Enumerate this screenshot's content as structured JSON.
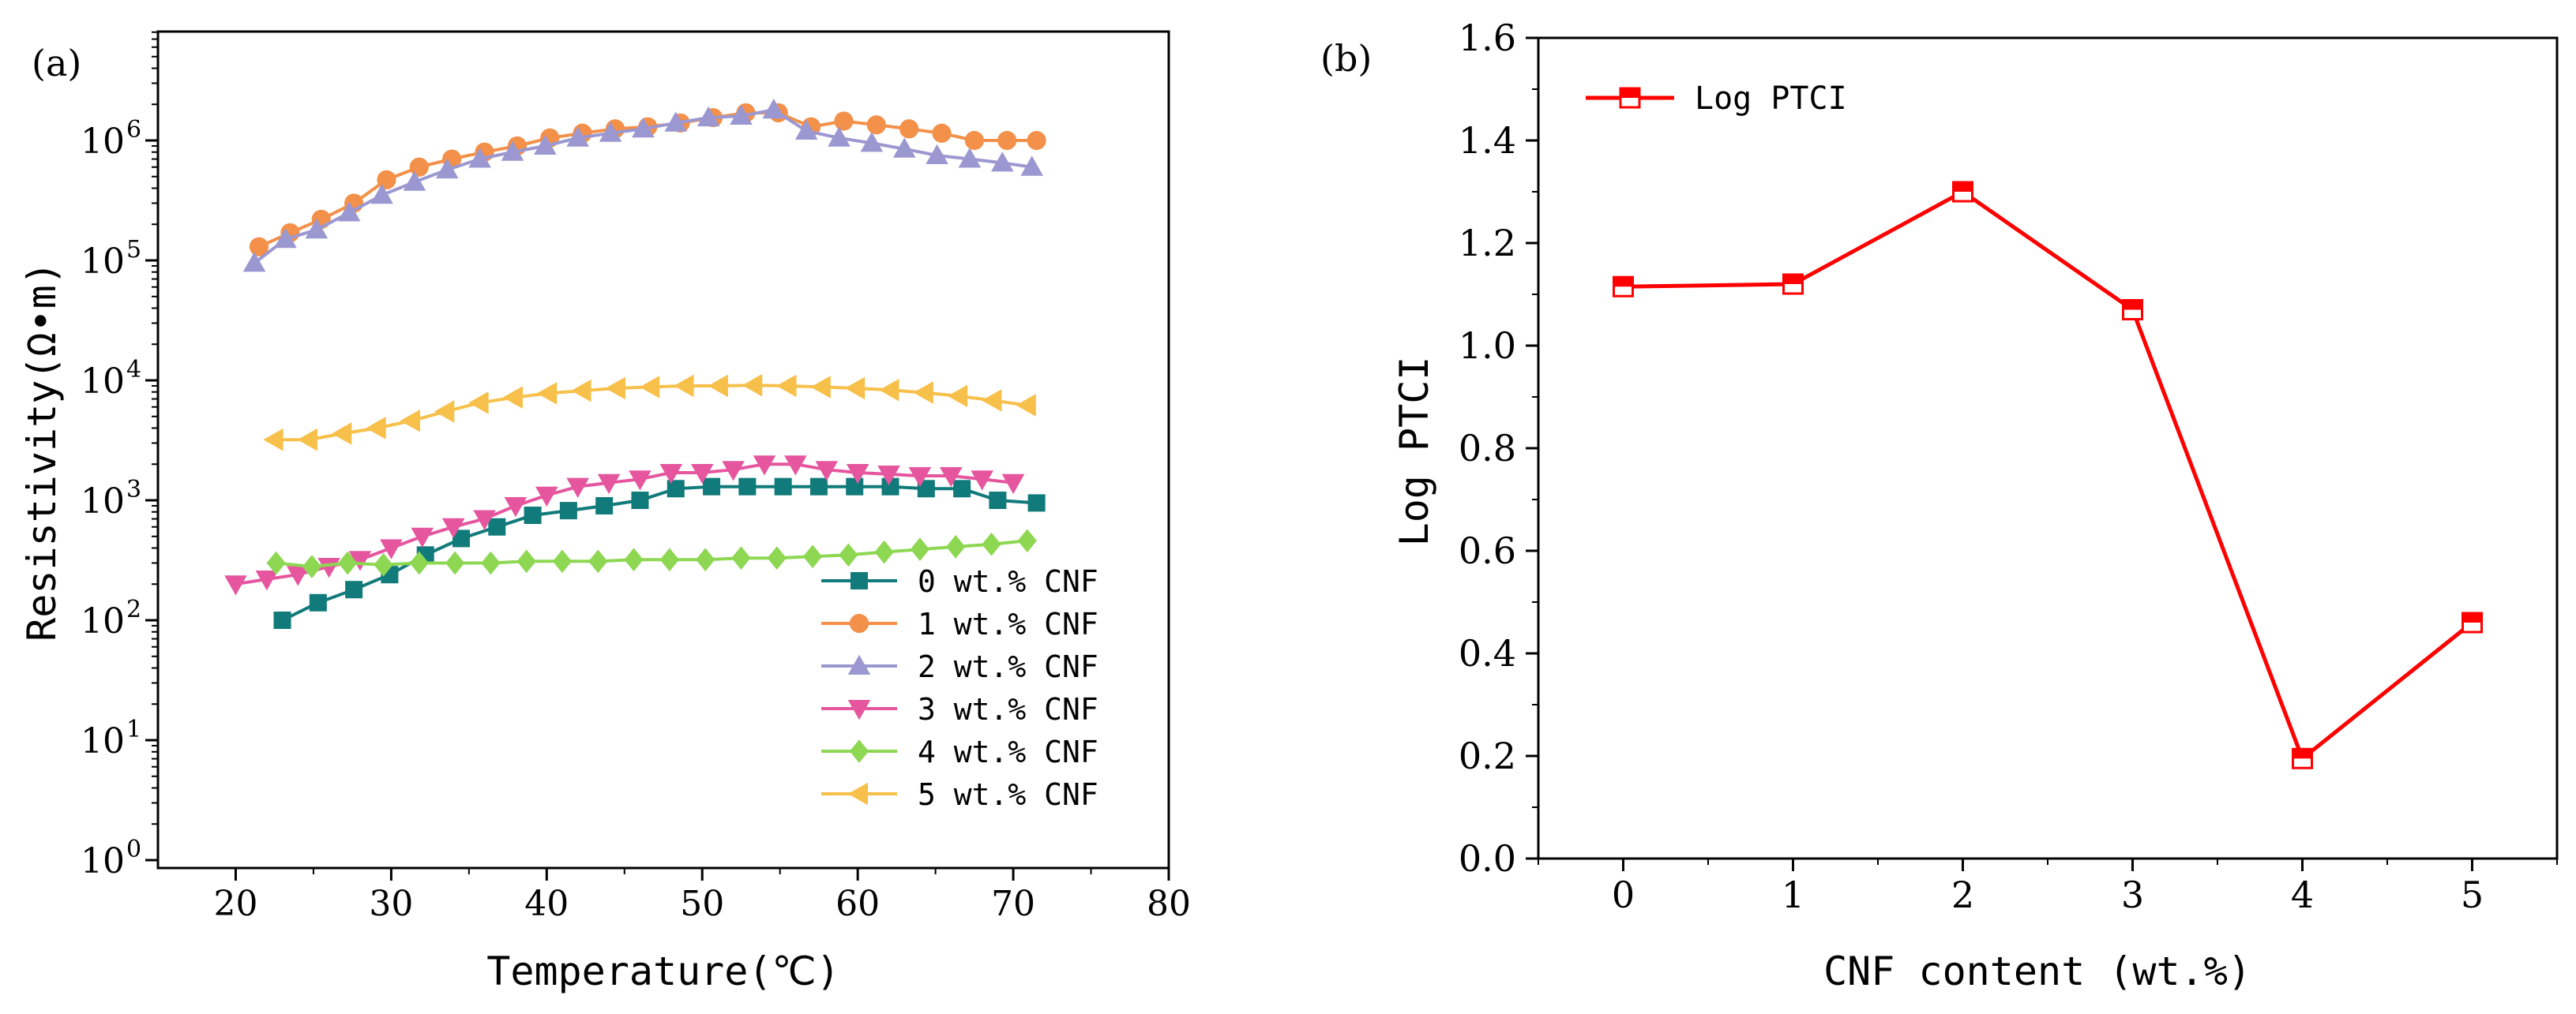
{
  "chart_data": [
    {
      "panel_label": "(a)",
      "type": "line",
      "xlabel": "Temperature(℃)",
      "ylabel": "Resistivity(Ω•m)",
      "yscale": "log",
      "xlim": [
        15,
        80
      ],
      "ylim": [
        1,
        10000000
      ],
      "x_ticks": [
        20,
        30,
        40,
        50,
        60,
        70,
        80
      ],
      "y_ticks": [
        {
          "value": 1,
          "base": "10",
          "exp": "0"
        },
        {
          "value": 10,
          "base": "10",
          "exp": "1"
        },
        {
          "value": 100,
          "base": "10",
          "exp": "2"
        },
        {
          "value": 1000,
          "base": "10",
          "exp": "3"
        },
        {
          "value": 10000,
          "base": "10",
          "exp": "4"
        },
        {
          "value": 100000,
          "base": "10",
          "exp": "5"
        },
        {
          "value": 1000000,
          "base": "10",
          "exp": "6"
        }
      ],
      "legend_position": "lower-right",
      "series": [
        {
          "name": "0 wt.% CNF",
          "color": "#117a7a",
          "marker": "square",
          "x": [
            23,
            25.3,
            27.6,
            29.9,
            32.2,
            34.5,
            36.8,
            39.1,
            41.4,
            43.7,
            46,
            48.3,
            50.6,
            52.9,
            55.2,
            57.5,
            59.8,
            62.1,
            64.4,
            66.7,
            69,
            71.5
          ],
          "y": [
            100,
            140,
            180,
            240,
            350,
            480,
            600,
            750,
            820,
            900,
            1000,
            1250,
            1300,
            1300,
            1300,
            1300,
            1300,
            1300,
            1250,
            1250,
            1000,
            950
          ]
        },
        {
          "name": "1 wt.% CNF",
          "color": "#f39049",
          "marker": "circle",
          "x": [
            21.5,
            23.5,
            25.5,
            27.6,
            29.7,
            31.8,
            33.9,
            36,
            38.1,
            40.2,
            42.3,
            44.4,
            46.5,
            48.6,
            50.7,
            52.8,
            54.9,
            57,
            59.1,
            61.2,
            63.3,
            65.4,
            67.5,
            69.6,
            71.5
          ],
          "y": [
            130000,
            170000,
            220000,
            300000,
            470000,
            600000,
            700000,
            800000,
            900000,
            1050000,
            1150000,
            1250000,
            1300000,
            1400000,
            1550000,
            1700000,
            1700000,
            1300000,
            1450000,
            1350000,
            1250000,
            1150000,
            1000000,
            1000000,
            1000000
          ]
        },
        {
          "name": "2 wt.% CNF",
          "color": "#9b98d1",
          "marker": "triangle-up",
          "x": [
            21.2,
            23.2,
            25.2,
            27.3,
            29.4,
            31.5,
            33.6,
            35.7,
            37.8,
            39.9,
            42,
            44.1,
            46.2,
            48.3,
            50.4,
            52.5,
            54.6,
            56.7,
            58.8,
            60.9,
            63,
            65.1,
            67.2,
            69.3,
            71.2
          ],
          "y": [
            95000,
            150000,
            180000,
            250000,
            350000,
            450000,
            570000,
            700000,
            800000,
            900000,
            1050000,
            1150000,
            1250000,
            1400000,
            1550000,
            1600000,
            1800000,
            1200000,
            1050000,
            950000,
            850000,
            750000,
            700000,
            650000,
            600000
          ]
        },
        {
          "name": "3 wt.% CNF",
          "color": "#e5569f",
          "marker": "triangle-down",
          "x": [
            20,
            22,
            24,
            26,
            28,
            30,
            32,
            34,
            36,
            38,
            40,
            42,
            44,
            46,
            48,
            50,
            52,
            54,
            56,
            58,
            60,
            62,
            64,
            66,
            68,
            70
          ],
          "y": [
            200,
            220,
            240,
            280,
            320,
            400,
            500,
            600,
            700,
            900,
            1100,
            1300,
            1400,
            1500,
            1700,
            1700,
            1800,
            2000,
            2000,
            1800,
            1700,
            1650,
            1600,
            1600,
            1500,
            1400
          ]
        },
        {
          "name": "4 wt.% CNF",
          "color": "#8ed752",
          "marker": "diamond",
          "x": [
            22.6,
            24.9,
            27.2,
            29.5,
            31.8,
            34.1,
            36.4,
            38.7,
            41,
            43.3,
            45.6,
            47.9,
            50.2,
            52.5,
            54.8,
            57.1,
            59.4,
            61.7,
            64,
            66.3,
            68.6,
            70.9
          ],
          "y": [
            300,
            280,
            300,
            290,
            300,
            300,
            300,
            310,
            310,
            310,
            320,
            320,
            320,
            330,
            330,
            340,
            350,
            370,
            390,
            410,
            430,
            460
          ]
        },
        {
          "name": "5 wt.% CNF",
          "color": "#f7c04a",
          "marker": "triangle-left",
          "x": [
            22.5,
            24.7,
            26.9,
            29.1,
            31.3,
            33.5,
            35.7,
            37.9,
            40.1,
            42.3,
            44.5,
            46.7,
            48.9,
            51.1,
            53.3,
            55.5,
            57.7,
            59.9,
            62.1,
            64.3,
            66.5,
            68.7,
            70.9
          ],
          "y": [
            3200,
            3200,
            3600,
            4000,
            4600,
            5500,
            6500,
            7200,
            7800,
            8200,
            8600,
            8800,
            9000,
            9000,
            9100,
            9000,
            8800,
            8600,
            8300,
            7900,
            7400,
            6800,
            6200
          ]
        }
      ]
    },
    {
      "panel_label": "(b)",
      "type": "line",
      "xlabel": "CNF content (wt.%)",
      "ylabel": "Log PTCI",
      "xlim": [
        -0.5,
        5.5
      ],
      "ylim": [
        0.0,
        1.6
      ],
      "x_ticks": [
        "0",
        "1",
        "2",
        "3",
        "4",
        "5"
      ],
      "y_ticks": [
        "0.0",
        "0.2",
        "0.4",
        "0.6",
        "0.8",
        "1.0",
        "1.2",
        "1.4",
        "1.6"
      ],
      "legend_position": "top-left",
      "series": [
        {
          "name": "Log PTCI",
          "color": "#ff0000",
          "marker": "half-filled-square",
          "x": [
            0,
            1,
            2,
            3,
            4,
            5
          ],
          "y": [
            1.115,
            1.12,
            1.3,
            1.07,
            0.195,
            0.46
          ]
        }
      ]
    }
  ]
}
